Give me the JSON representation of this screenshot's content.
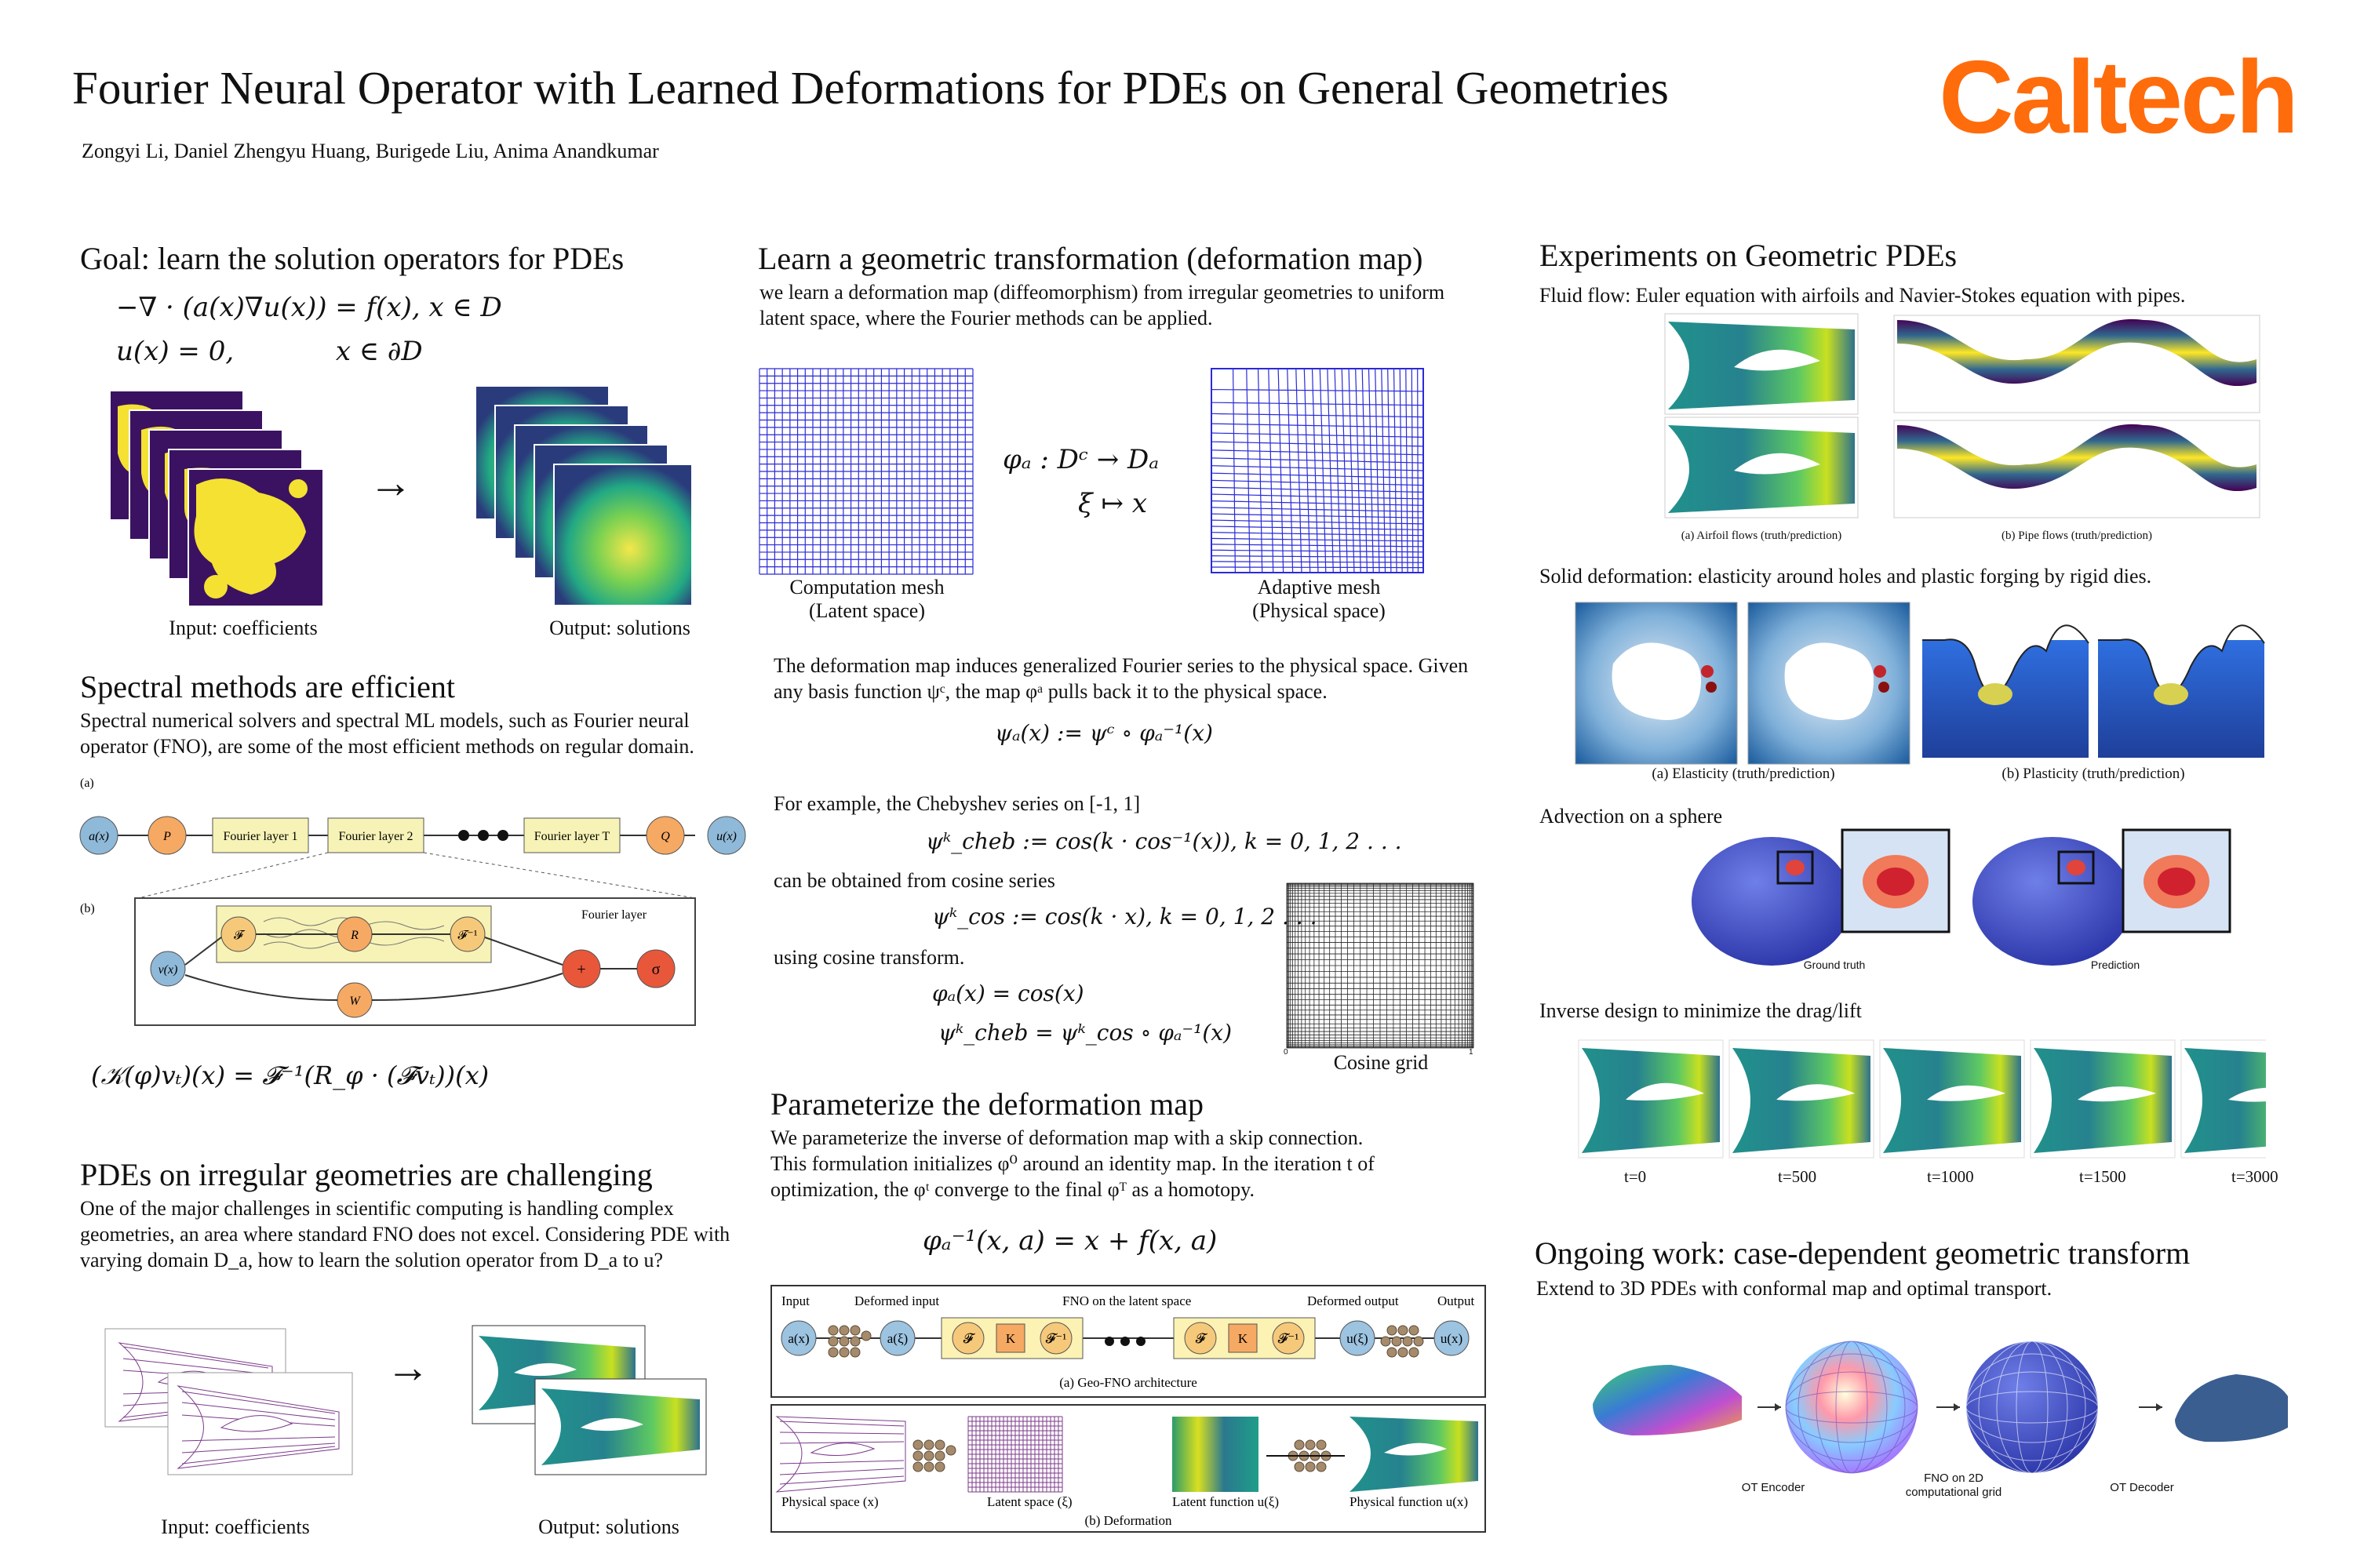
{
  "header": {
    "title": "Fourier Neural Operator with Learned Deformations for PDEs on General Geometries",
    "authors": "Zongyi Li, Daniel Zhengyu Huang, Burigede Liu, Anima Anandkumar",
    "logo": "Caltech",
    "logo_color": "#ff6c0c"
  },
  "goal": {
    "heading": "Goal: learn the solution operators for PDEs",
    "eq1": "−∇ · (a(x)∇u(x)) = f(x),    x ∈ D",
    "eq2": "u(x) = 0,            x ∈ ∂D",
    "arrow": "→",
    "input_caption": "Input: coefficients",
    "output_caption": "Output: solutions"
  },
  "spectral": {
    "heading": "Spectral methods are efficient",
    "text": "Spectral numerical solvers and spectral ML models, such as Fourier neural operator (FNO), are some of the most efficient methods on regular domain.",
    "label_a": "(a)",
    "label_b": "(b)",
    "nodes": [
      "a(x)",
      "P",
      "Fourier layer 1",
      "Fourier layer 2",
      "Fourier layer T",
      "Q",
      "u(x)"
    ],
    "fourier_layer_label": "Fourier layer",
    "inner_nodes": [
      "v(x)",
      "𝓕",
      "R",
      "𝓕⁻¹",
      "W",
      "+",
      "σ"
    ],
    "equation": "(𝒦(φ)vₜ)(x) = 𝓕⁻¹(R_φ · (𝓕vₜ))(x)"
  },
  "irregular": {
    "heading": "PDEs on irregular geometries are challenging",
    "text": "One of the major challenges in scientific computing is handling complex geometries, an area where standard FNO does not excel. Considering PDE with varying domain D_a, how to learn the solution operator from D_a to u?",
    "arrow": "→",
    "input_caption": "Input: coefficients",
    "output_caption": "Output: solutions"
  },
  "deformation": {
    "heading": "Learn a geometric transformation (deformation map)",
    "text": "we learn a deformation map (diffeomorphism) from irregular geometries to uniform latent space, where the Fourier methods can be applied.",
    "map_eq1": "φₐ : Dᶜ → Dₐ",
    "map_eq2": "ξ ↦ x",
    "comp_caption1": "Computation mesh",
    "comp_caption2": "(Latent space)",
    "adapt_caption1": "Adaptive mesh",
    "adapt_caption2": "(Physical space)",
    "induce_text": "The deformation map induces generalized Fourier series to the physical space. Given any basis function ψᶜ, the map φᵃ pulls back it to the physical space.",
    "psi_eq": "ψₐ(x) := ψᶜ ∘ φₐ⁻¹(x)",
    "example_text": "For example, the Chebyshev series on [-1, 1]",
    "cheb_eq": "ψᵏ_cheb := cos(k · cos⁻¹(x)),    k = 0, 1, 2 . . .",
    "cos_intro": "can be obtained from cosine series",
    "cos_eq": "ψᵏ_cos := cos(k · x),    k = 0, 1, 2 . . .",
    "transform_text": "using cosine transform.",
    "phi_eq": "φₐ(x) = cos(x)",
    "cheb2_eq": "ψᵏ_cheb = ψᵏ_cos ∘ φₐ⁻¹(x)",
    "cosine_grid_caption": "Cosine grid",
    "axis_0": "0",
    "axis_1": "1"
  },
  "parameterize": {
    "heading": "Parameterize the deformation map",
    "text1": "We parameterize the inverse of deformation map with a skip connection.",
    "text2": "This formulation initializes φ⁰ around an identity map. In the iteration t of",
    "text3": "optimization, the φᵗ converge to the final φᵀ as a homotopy.",
    "eq": "φₐ⁻¹(x, a) = x + f(x, a)",
    "arch_labels": [
      "Input",
      "Deformed input",
      "FNO on the latent space",
      "Deformed output",
      "Output"
    ],
    "arch_nodes": [
      "a(x)",
      "a(ξ)",
      "𝓕",
      "K",
      "𝓕⁻¹",
      "𝓕",
      "K",
      "𝓕⁻¹",
      "u(ξ)",
      "u(x)"
    ],
    "arch_caption": "(a) Geo-FNO architecture",
    "deform_labels": [
      "Physical space (x)",
      "Latent space (ξ)",
      "Latent function u(ξ)",
      "Physical function u(x)"
    ],
    "deform_caption": "(b) Deformation"
  },
  "experiments": {
    "heading": "Experiments on Geometric PDEs",
    "fluid_text": "Fluid flow: Euler equation with airfoils and Navier-Stokes equation with pipes.",
    "airfoil_caption": "(a) Airfoil flows (truth/prediction)",
    "pipe_caption": "(b) Pipe flows (truth/prediction)",
    "solid_text": "Solid deformation: elasticity around holes and plastic forging by rigid dies.",
    "elasticity_caption": "(a) Elasticity (truth/prediction)",
    "plasticity_caption": "(b) Plasticity (truth/prediction)",
    "advection_text": "Advection on a sphere",
    "ground_truth": "Ground truth",
    "prediction": "Prediction",
    "inverse_text": "Inverse design to minimize the drag/lift",
    "timesteps": [
      "t=0",
      "t=500",
      "t=1000",
      "t=1500",
      "t=3000"
    ]
  },
  "ongoing": {
    "heading": "Ongoing work: case-dependent geometric transform",
    "text": "Extend to 3D PDEs with conformal map and optimal transport.",
    "ot_encoder": "OT Encoder",
    "fno_label1": "FNO on 2D",
    "fno_label2": "computational grid",
    "ot_decoder": "OT Decoder"
  }
}
